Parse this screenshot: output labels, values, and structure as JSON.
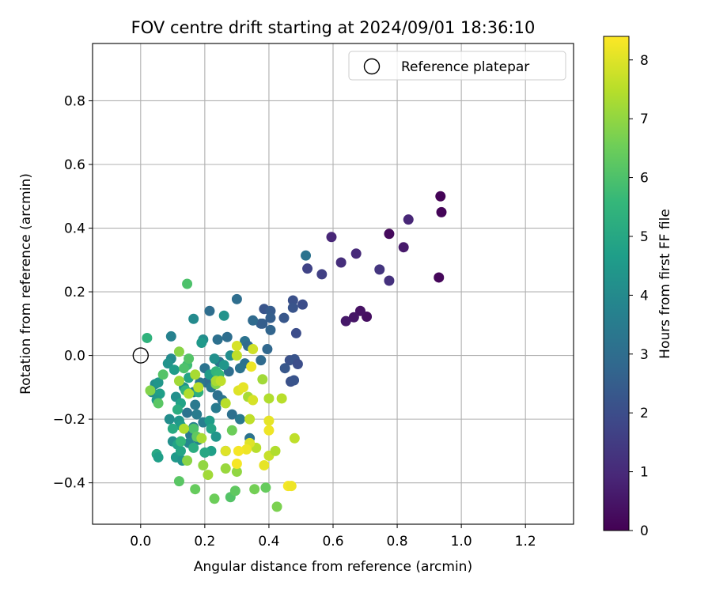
{
  "chart_data": {
    "type": "scatter",
    "title": "FOV centre drift starting at 2024/09/01 18:36:10",
    "xlabel": "Angular distance from reference (arcmin)",
    "ylabel": "Rotation from reference (arcmin)",
    "xlim": [
      -0.15,
      1.35
    ],
    "ylim": [
      -0.53,
      0.98
    ],
    "xticks": [
      "0.0",
      "0.2",
      "0.4",
      "0.6",
      "0.8",
      "1.0",
      "1.2"
    ],
    "xtick_values": [
      0.0,
      0.2,
      0.4,
      0.6,
      0.8,
      1.0,
      1.2
    ],
    "yticks": [
      "−0.4",
      "−0.2",
      "0.0",
      "0.2",
      "0.4",
      "0.6",
      "0.8"
    ],
    "ytick_values": [
      -0.4,
      -0.2,
      0.0,
      0.2,
      0.4,
      0.6,
      0.8
    ],
    "grid": true,
    "legend": {
      "placement": "top-right",
      "entries": [
        "Reference platepar"
      ]
    },
    "reference_point": {
      "x": 0.0,
      "y": 0.0,
      "marker": "open-circle"
    },
    "colorbar": {
      "label": "Hours from first FF file",
      "range": [
        0,
        8.4
      ],
      "ticks": [
        "0",
        "1",
        "2",
        "3",
        "4",
        "5",
        "6",
        "7",
        "8"
      ],
      "tick_values": [
        0,
        1,
        2,
        3,
        4,
        5,
        6,
        7,
        8
      ],
      "colormap": "viridis",
      "colors": [
        "#440154",
        "#482878",
        "#3e4989",
        "#31688e",
        "#26828e",
        "#1f9e89",
        "#35b779",
        "#6ece58",
        "#b5de2b",
        "#fde725"
      ]
    },
    "points": [
      {
        "x": 0.935,
        "y": 0.5,
        "h": 0.05
      },
      {
        "x": 0.938,
        "y": 0.45,
        "h": 0.1
      },
      {
        "x": 0.93,
        "y": 0.245,
        "h": 0.15
      },
      {
        "x": 0.775,
        "y": 0.382,
        "h": 0.2
      },
      {
        "x": 0.705,
        "y": 0.122,
        "h": 0.3
      },
      {
        "x": 0.685,
        "y": 0.14,
        "h": 0.4
      },
      {
        "x": 0.665,
        "y": 0.12,
        "h": 0.5
      },
      {
        "x": 0.64,
        "y": 0.108,
        "h": 0.55
      },
      {
        "x": 0.82,
        "y": 0.34,
        "h": 0.6
      },
      {
        "x": 0.835,
        "y": 0.427,
        "h": 0.9
      },
      {
        "x": 0.595,
        "y": 0.372,
        "h": 0.9
      },
      {
        "x": 0.672,
        "y": 0.32,
        "h": 1.0
      },
      {
        "x": 0.625,
        "y": 0.292,
        "h": 1.1
      },
      {
        "x": 0.775,
        "y": 0.235,
        "h": 1.2
      },
      {
        "x": 0.745,
        "y": 0.27,
        "h": 1.3
      },
      {
        "x": 0.565,
        "y": 0.255,
        "h": 1.6
      },
      {
        "x": 0.52,
        "y": 0.273,
        "h": 1.7
      },
      {
        "x": 0.505,
        "y": 0.16,
        "h": 2.0
      },
      {
        "x": 0.475,
        "y": 0.173,
        "h": 2.1
      },
      {
        "x": 0.475,
        "y": 0.15,
        "h": 2.2
      },
      {
        "x": 0.447,
        "y": 0.118,
        "h": 2.3
      },
      {
        "x": 0.485,
        "y": 0.07,
        "h": 2.0
      },
      {
        "x": 0.465,
        "y": -0.015,
        "h": 2.1
      },
      {
        "x": 0.48,
        "y": -0.012,
        "h": 2.2
      },
      {
        "x": 0.49,
        "y": -0.027,
        "h": 2.0
      },
      {
        "x": 0.45,
        "y": -0.04,
        "h": 2.3
      },
      {
        "x": 0.468,
        "y": -0.082,
        "h": 2.1
      },
      {
        "x": 0.478,
        "y": -0.078,
        "h": 2.2
      },
      {
        "x": 0.385,
        "y": 0.146,
        "h": 2.2
      },
      {
        "x": 0.405,
        "y": 0.14,
        "h": 2.4
      },
      {
        "x": 0.405,
        "y": 0.118,
        "h": 2.5
      },
      {
        "x": 0.375,
        "y": 0.1,
        "h": 2.6
      },
      {
        "x": 0.405,
        "y": 0.08,
        "h": 2.7
      },
      {
        "x": 0.35,
        "y": 0.11,
        "h": 2.9
      },
      {
        "x": 0.38,
        "y": 0.1,
        "h": 2.5
      },
      {
        "x": 0.515,
        "y": 0.314,
        "h": 3.2
      },
      {
        "x": 0.3,
        "y": 0.177,
        "h": 3.0
      },
      {
        "x": 0.215,
        "y": 0.14,
        "h": 3.0
      },
      {
        "x": 0.24,
        "y": 0.05,
        "h": 3.1
      },
      {
        "x": 0.27,
        "y": 0.058,
        "h": 3.0
      },
      {
        "x": 0.325,
        "y": 0.045,
        "h": 3.2
      },
      {
        "x": 0.335,
        "y": 0.03,
        "h": 2.9
      },
      {
        "x": 0.395,
        "y": 0.02,
        "h": 2.8
      },
      {
        "x": 0.375,
        "y": -0.015,
        "h": 2.9
      },
      {
        "x": 0.325,
        "y": -0.025,
        "h": 3.1
      },
      {
        "x": 0.31,
        "y": -0.04,
        "h": 3.2
      },
      {
        "x": 0.275,
        "y": -0.05,
        "h": 3.0
      },
      {
        "x": 0.245,
        "y": -0.02,
        "h": 3.3
      },
      {
        "x": 0.2,
        "y": -0.04,
        "h": 3.2
      },
      {
        "x": 0.205,
        "y": -0.085,
        "h": 3.0
      },
      {
        "x": 0.22,
        "y": -0.1,
        "h": 3.4
      },
      {
        "x": 0.24,
        "y": -0.125,
        "h": 3.1
      },
      {
        "x": 0.255,
        "y": -0.14,
        "h": 3.2
      },
      {
        "x": 0.235,
        "y": -0.165,
        "h": 3.5
      },
      {
        "x": 0.185,
        "y": -0.085,
        "h": 3.3
      },
      {
        "x": 0.165,
        "y": -0.115,
        "h": 3.6
      },
      {
        "x": 0.17,
        "y": -0.155,
        "h": 3.4
      },
      {
        "x": 0.145,
        "y": -0.18,
        "h": 3.2
      },
      {
        "x": 0.175,
        "y": -0.185,
        "h": 3.5
      },
      {
        "x": 0.195,
        "y": -0.21,
        "h": 3.6
      },
      {
        "x": 0.165,
        "y": -0.225,
        "h": 3.7
      },
      {
        "x": 0.155,
        "y": -0.25,
        "h": 3.4
      },
      {
        "x": 0.18,
        "y": -0.265,
        "h": 3.8
      },
      {
        "x": 0.15,
        "y": -0.275,
        "h": 3.9
      },
      {
        "x": 0.285,
        "y": -0.185,
        "h": 3.1
      },
      {
        "x": 0.31,
        "y": -0.2,
        "h": 3.4
      },
      {
        "x": 0.265,
        "y": -0.3,
        "h": 3.3
      },
      {
        "x": 0.34,
        "y": -0.26,
        "h": 3.2
      },
      {
        "x": 0.095,
        "y": 0.06,
        "h": 3.7
      },
      {
        "x": 0.165,
        "y": 0.115,
        "h": 4.0
      },
      {
        "x": 0.26,
        "y": 0.125,
        "h": 4.3
      },
      {
        "x": 0.195,
        "y": 0.05,
        "h": 4.1
      },
      {
        "x": 0.19,
        "y": 0.04,
        "h": 4.5
      },
      {
        "x": 0.28,
        "y": 0.0,
        "h": 4.1
      },
      {
        "x": 0.26,
        "y": -0.03,
        "h": 4.4
      },
      {
        "x": 0.23,
        "y": -0.01,
        "h": 4.2
      },
      {
        "x": 0.215,
        "y": -0.06,
        "h": 4.6
      },
      {
        "x": 0.095,
        "y": -0.01,
        "h": 4.0
      },
      {
        "x": 0.085,
        "y": -0.025,
        "h": 4.3
      },
      {
        "x": 0.105,
        "y": -0.045,
        "h": 4.6
      },
      {
        "x": 0.045,
        "y": -0.09,
        "h": 4.1
      },
      {
        "x": 0.055,
        "y": -0.085,
        "h": 4.4
      },
      {
        "x": 0.035,
        "y": -0.115,
        "h": 4.0
      },
      {
        "x": 0.06,
        "y": -0.12,
        "h": 4.7
      },
      {
        "x": 0.05,
        "y": -0.14,
        "h": 4.5
      },
      {
        "x": 0.11,
        "y": -0.13,
        "h": 4.2
      },
      {
        "x": 0.125,
        "y": -0.15,
        "h": 4.8
      },
      {
        "x": 0.135,
        "y": -0.1,
        "h": 4.3
      },
      {
        "x": 0.15,
        "y": -0.07,
        "h": 4.9
      },
      {
        "x": 0.09,
        "y": -0.2,
        "h": 4.1
      },
      {
        "x": 0.12,
        "y": -0.205,
        "h": 4.4
      },
      {
        "x": 0.125,
        "y": -0.22,
        "h": 4.6
      },
      {
        "x": 0.1,
        "y": -0.27,
        "h": 4.2
      },
      {
        "x": 0.115,
        "y": -0.28,
        "h": 4.8
      },
      {
        "x": 0.11,
        "y": -0.32,
        "h": 4.5
      },
      {
        "x": 0.13,
        "y": -0.33,
        "h": 4.3
      },
      {
        "x": 0.125,
        "y": -0.3,
        "h": 4.9
      },
      {
        "x": 0.05,
        "y": -0.31,
        "h": 5.0
      },
      {
        "x": 0.055,
        "y": -0.32,
        "h": 4.7
      },
      {
        "x": 0.1,
        "y": -0.23,
        "h": 5.1
      },
      {
        "x": 0.215,
        "y": -0.205,
        "h": 4.6
      },
      {
        "x": 0.22,
        "y": -0.23,
        "h": 4.9
      },
      {
        "x": 0.235,
        "y": -0.255,
        "h": 4.4
      },
      {
        "x": 0.22,
        "y": -0.3,
        "h": 4.7
      },
      {
        "x": 0.2,
        "y": -0.305,
        "h": 5.0
      },
      {
        "x": 0.165,
        "y": -0.29,
        "h": 5.2
      },
      {
        "x": 0.02,
        "y": 0.055,
        "h": 5.4
      },
      {
        "x": 0.18,
        "y": -0.115,
        "h": 5.3
      },
      {
        "x": 0.235,
        "y": -0.05,
        "h": 5.5
      },
      {
        "x": 0.245,
        "y": -0.06,
        "h": 5.6
      },
      {
        "x": 0.14,
        "y": -0.11,
        "h": 5.5
      },
      {
        "x": 0.115,
        "y": -0.17,
        "h": 5.2
      },
      {
        "x": 0.145,
        "y": -0.03,
        "h": 5.8
      },
      {
        "x": 0.125,
        "y": -0.27,
        "h": 5.6
      },
      {
        "x": 0.145,
        "y": 0.225,
        "h": 6.0
      },
      {
        "x": 0.135,
        "y": -0.04,
        "h": 6.0
      },
      {
        "x": 0.07,
        "y": -0.06,
        "h": 6.1
      },
      {
        "x": 0.055,
        "y": -0.15,
        "h": 6.2
      },
      {
        "x": 0.15,
        "y": -0.01,
        "h": 6.1
      },
      {
        "x": 0.165,
        "y": -0.23,
        "h": 6.0
      },
      {
        "x": 0.175,
        "y": -0.255,
        "h": 6.3
      },
      {
        "x": 0.12,
        "y": -0.395,
        "h": 6.2
      },
      {
        "x": 0.17,
        "y": -0.42,
        "h": 6.4
      },
      {
        "x": 0.23,
        "y": -0.45,
        "h": 6.5
      },
      {
        "x": 0.28,
        "y": -0.445,
        "h": 6.1
      },
      {
        "x": 0.295,
        "y": -0.425,
        "h": 6.3
      },
      {
        "x": 0.355,
        "y": -0.42,
        "h": 6.6
      },
      {
        "x": 0.39,
        "y": -0.415,
        "h": 6.4
      },
      {
        "x": 0.425,
        "y": -0.475,
        "h": 6.7
      },
      {
        "x": 0.285,
        "y": -0.235,
        "h": 6.5
      },
      {
        "x": 0.235,
        "y": -0.09,
        "h": 6.8
      },
      {
        "x": 0.145,
        "y": -0.33,
        "h": 6.9
      },
      {
        "x": 0.195,
        "y": -0.345,
        "h": 7.0
      },
      {
        "x": 0.21,
        "y": -0.375,
        "h": 7.2
      },
      {
        "x": 0.265,
        "y": -0.355,
        "h": 7.1
      },
      {
        "x": 0.3,
        "y": -0.365,
        "h": 7.0
      },
      {
        "x": 0.03,
        "y": -0.11,
        "h": 6.8
      },
      {
        "x": 0.12,
        "y": 0.012,
        "h": 6.9
      },
      {
        "x": 0.12,
        "y": -0.08,
        "h": 7.2
      },
      {
        "x": 0.15,
        "y": -0.12,
        "h": 7.4
      },
      {
        "x": 0.17,
        "y": -0.06,
        "h": 7.3
      },
      {
        "x": 0.18,
        "y": -0.1,
        "h": 7.5
      },
      {
        "x": 0.235,
        "y": -0.08,
        "h": 7.3
      },
      {
        "x": 0.25,
        "y": -0.08,
        "h": 7.6
      },
      {
        "x": 0.265,
        "y": -0.15,
        "h": 7.5
      },
      {
        "x": 0.135,
        "y": -0.23,
        "h": 7.4
      },
      {
        "x": 0.19,
        "y": -0.26,
        "h": 7.3
      },
      {
        "x": 0.38,
        "y": -0.075,
        "h": 7.2
      },
      {
        "x": 0.4,
        "y": -0.135,
        "h": 7.4
      },
      {
        "x": 0.44,
        "y": -0.135,
        "h": 7.5
      },
      {
        "x": 0.335,
        "y": -0.13,
        "h": 7.3
      },
      {
        "x": 0.34,
        "y": -0.2,
        "h": 7.6
      },
      {
        "x": 0.36,
        "y": -0.29,
        "h": 7.5
      },
      {
        "x": 0.4,
        "y": -0.315,
        "h": 7.7
      },
      {
        "x": 0.42,
        "y": -0.3,
        "h": 7.4
      },
      {
        "x": 0.48,
        "y": -0.26,
        "h": 7.6
      },
      {
        "x": 0.3,
        "y": 0.0,
        "h": 7.6
      },
      {
        "x": 0.35,
        "y": 0.02,
        "h": 7.8
      },
      {
        "x": 0.3,
        "y": 0.03,
        "h": 7.9
      },
      {
        "x": 0.305,
        "y": -0.11,
        "h": 8.0
      },
      {
        "x": 0.32,
        "y": -0.1,
        "h": 8.1
      },
      {
        "x": 0.345,
        "y": -0.035,
        "h": 8.2
      },
      {
        "x": 0.35,
        "y": -0.14,
        "h": 7.9
      },
      {
        "x": 0.4,
        "y": -0.205,
        "h": 8.1
      },
      {
        "x": 0.4,
        "y": -0.235,
        "h": 8.2
      },
      {
        "x": 0.34,
        "y": -0.275,
        "h": 8.0
      },
      {
        "x": 0.33,
        "y": -0.295,
        "h": 8.2
      },
      {
        "x": 0.305,
        "y": -0.3,
        "h": 8.3
      },
      {
        "x": 0.385,
        "y": -0.345,
        "h": 8.1
      },
      {
        "x": 0.46,
        "y": -0.41,
        "h": 8.3
      },
      {
        "x": 0.47,
        "y": -0.41,
        "h": 8.2
      },
      {
        "x": 0.265,
        "y": -0.3,
        "h": 8.0
      },
      {
        "x": 0.3,
        "y": -0.34,
        "h": 8.3
      }
    ]
  }
}
